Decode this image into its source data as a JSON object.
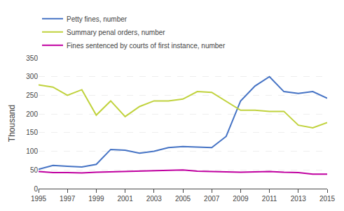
{
  "chart_data": {
    "type": "line",
    "y_label": "Thousand",
    "x": [
      1995,
      1996,
      1997,
      1998,
      1999,
      2000,
      2001,
      2002,
      2003,
      2004,
      2005,
      2006,
      2007,
      2008,
      2009,
      2010,
      2011,
      2012,
      2013,
      2014,
      2015
    ],
    "series": [
      {
        "name": "Petty fines, number",
        "color": "#4472C4",
        "values": [
          52,
          62,
          60,
          58,
          65,
          105,
          103,
          95,
          100,
          110,
          113,
          112,
          110,
          140,
          235,
          275,
          300,
          260,
          255,
          260,
          242
        ]
      },
      {
        "name": "Summary penal orders, number",
        "color": "#C0D23C",
        "values": [
          278,
          272,
          250,
          265,
          197,
          235,
          193,
          220,
          235,
          235,
          240,
          260,
          258,
          234,
          210,
          210,
          207,
          207,
          170,
          163,
          177
        ]
      },
      {
        "name": "Fines sentenced by courts of first instance, number",
        "color": "#C000A0",
        "values": [
          46,
          43,
          43,
          42,
          44,
          45,
          46,
          47,
          48,
          48,
          50,
          47,
          46,
          45,
          44,
          45,
          46,
          44,
          43,
          39,
          39
        ]
      }
    ],
    "xlim": [
      1995,
      2015
    ],
    "xticks": [
      1995,
      1997,
      1999,
      2001,
      2003,
      2005,
      2007,
      2009,
      2011,
      2013,
      2015
    ],
    "ylim": [
      0,
      350
    ],
    "yticks": [
      0,
      50,
      100,
      150,
      200,
      250,
      300,
      350
    ],
    "grid": true,
    "legend": "upper left"
  }
}
